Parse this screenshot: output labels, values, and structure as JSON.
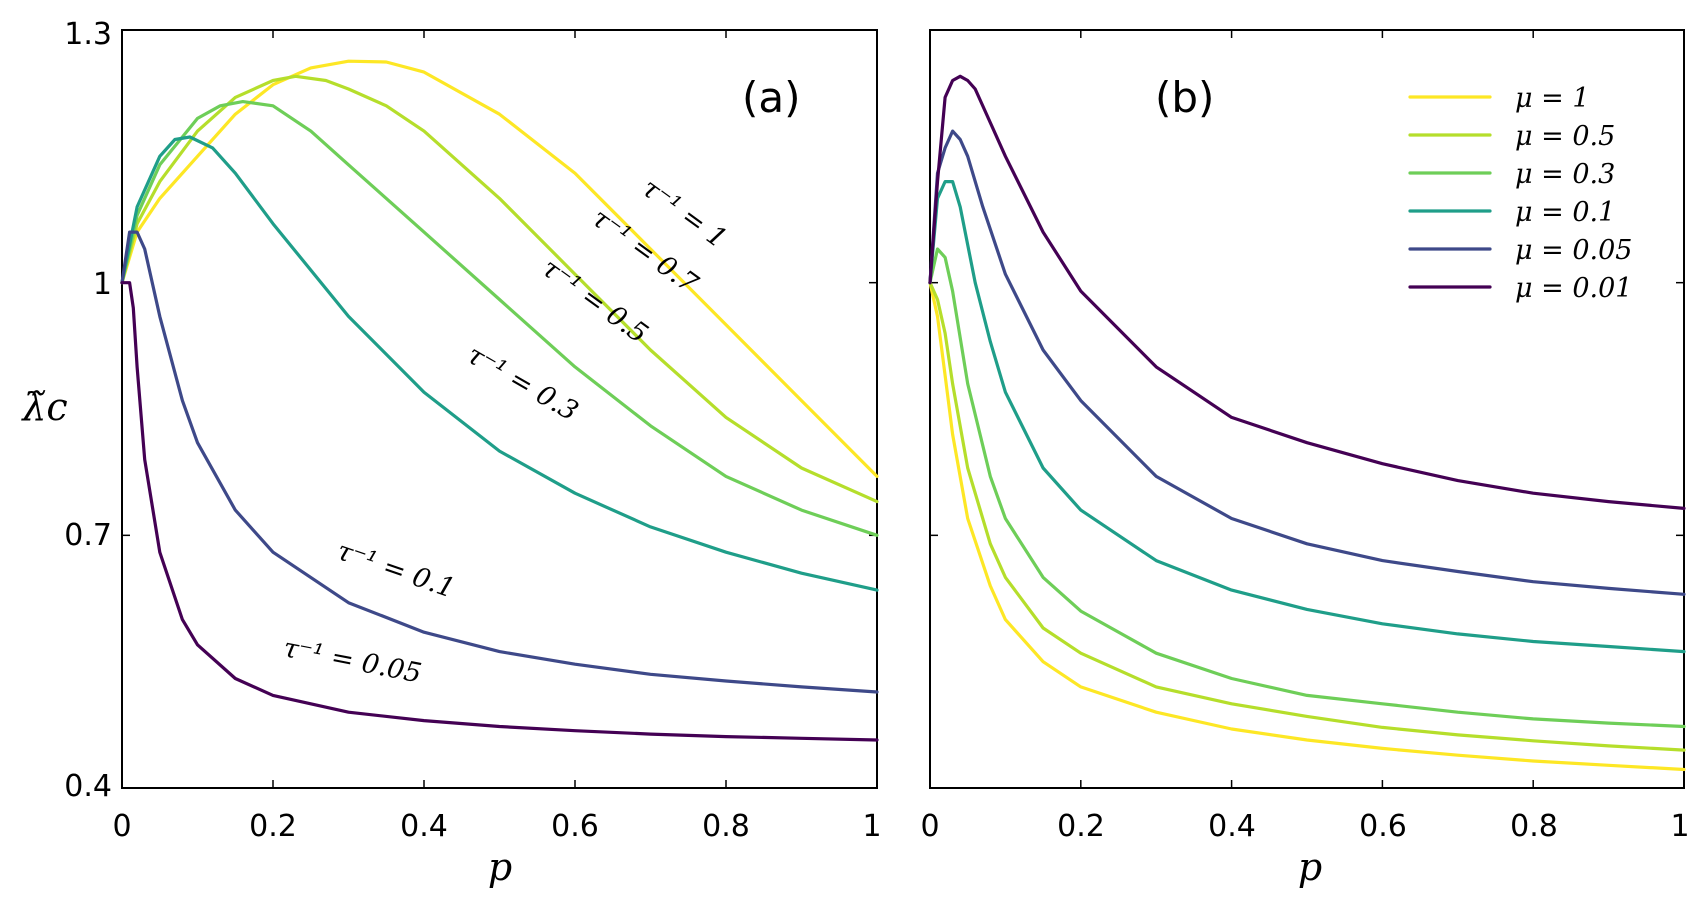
{
  "chart_data": [
    {
      "type": "line",
      "panel_label": "(a)",
      "xlabel": "p",
      "ylabel": "λ̃c",
      "xlim": [
        0,
        1
      ],
      "ylim": [
        0.4,
        1.3
      ],
      "xticks": [
        0,
        0.2,
        0.4,
        0.6,
        0.8,
        1
      ],
      "xtick_labels": [
        "0",
        "0.2",
        "0.4",
        "0.6",
        "0.8",
        "1"
      ],
      "yticks": [
        0.4,
        0.7,
        1,
        1.3
      ],
      "ytick_labels": [
        "0.4",
        "0.7",
        "1",
        "1.3"
      ],
      "series": [
        {
          "name": "τ⁻¹ = 1",
          "label_text": "τ⁻¹ = 1",
          "color": "#fde725",
          "x": [
            0,
            0.02,
            0.05,
            0.1,
            0.15,
            0.2,
            0.25,
            0.3,
            0.35,
            0.4,
            0.5,
            0.6,
            0.7,
            0.8,
            0.9,
            1
          ],
          "y": [
            1.0,
            1.06,
            1.1,
            1.15,
            1.2,
            1.235,
            1.255,
            1.263,
            1.262,
            1.25,
            1.2,
            1.13,
            1.04,
            0.95,
            0.86,
            0.77
          ]
        },
        {
          "name": "τ⁻¹ = 0.7",
          "label_text": "τ⁻¹ = 0.7",
          "color": "#b5de2b",
          "x": [
            0,
            0.02,
            0.05,
            0.1,
            0.15,
            0.2,
            0.23,
            0.27,
            0.3,
            0.35,
            0.4,
            0.5,
            0.6,
            0.7,
            0.8,
            0.9,
            1
          ],
          "y": [
            1.0,
            1.07,
            1.12,
            1.18,
            1.22,
            1.24,
            1.245,
            1.24,
            1.23,
            1.21,
            1.18,
            1.1,
            1.01,
            0.92,
            0.84,
            0.78,
            0.74
          ]
        },
        {
          "name": "τ⁻¹ = 0.5",
          "label_text": "τ⁻¹ = 0.5",
          "color": "#6ece58",
          "x": [
            0,
            0.02,
            0.05,
            0.1,
            0.13,
            0.16,
            0.2,
            0.25,
            0.3,
            0.4,
            0.5,
            0.6,
            0.7,
            0.8,
            0.9,
            1
          ],
          "y": [
            1.0,
            1.08,
            1.14,
            1.195,
            1.21,
            1.215,
            1.21,
            1.18,
            1.14,
            1.06,
            0.98,
            0.9,
            0.83,
            0.77,
            0.73,
            0.7
          ]
        },
        {
          "name": "τ⁻¹ = 0.3",
          "label_text": "τ⁻¹ = 0.3",
          "color": "#1f9e89",
          "x": [
            0,
            0.02,
            0.05,
            0.07,
            0.09,
            0.12,
            0.15,
            0.2,
            0.3,
            0.4,
            0.5,
            0.6,
            0.7,
            0.8,
            0.9,
            1
          ],
          "y": [
            1.0,
            1.09,
            1.15,
            1.17,
            1.173,
            1.16,
            1.13,
            1.07,
            0.96,
            0.87,
            0.8,
            0.75,
            0.71,
            0.68,
            0.655,
            0.635
          ]
        },
        {
          "name": "τ⁻¹ = 0.1",
          "label_text": "τ⁻¹ = 0.1",
          "color": "#3e4989",
          "x": [
            0,
            0.01,
            0.02,
            0.03,
            0.05,
            0.08,
            0.1,
            0.15,
            0.2,
            0.3,
            0.4,
            0.5,
            0.6,
            0.7,
            0.8,
            0.9,
            1
          ],
          "y": [
            1.0,
            1.06,
            1.06,
            1.04,
            0.96,
            0.86,
            0.81,
            0.73,
            0.68,
            0.62,
            0.585,
            0.562,
            0.547,
            0.535,
            0.527,
            0.52,
            0.514
          ]
        },
        {
          "name": "τ⁻¹ = 0.05",
          "label_text": "τ⁻¹ = 0.05",
          "color": "#440154",
          "x": [
            0,
            0.01,
            0.015,
            0.02,
            0.03,
            0.05,
            0.08,
            0.1,
            0.15,
            0.2,
            0.3,
            0.4,
            0.5,
            0.6,
            0.7,
            0.8,
            0.9,
            1
          ],
          "y": [
            1.0,
            1.0,
            0.97,
            0.9,
            0.79,
            0.68,
            0.6,
            0.57,
            0.53,
            0.51,
            0.49,
            0.48,
            0.473,
            0.468,
            0.464,
            0.461,
            0.459,
            0.457
          ]
        }
      ]
    },
    {
      "type": "line",
      "panel_label": "(b)",
      "xlabel": "p",
      "xlim": [
        0,
        1
      ],
      "ylim": [
        0.4,
        1.3
      ],
      "xticks": [
        0,
        0.2,
        0.4,
        0.6,
        0.8,
        1
      ],
      "xtick_labels": [
        "0",
        "0.2",
        "0.4",
        "0.6",
        "0.8",
        "1"
      ],
      "yticks": [
        0.4,
        0.7,
        1,
        1.3
      ],
      "legend_position": "top-right",
      "series": [
        {
          "name": "μ = 1",
          "color": "#fde725",
          "x": [
            0,
            0.01,
            0.02,
            0.03,
            0.05,
            0.08,
            0.1,
            0.15,
            0.2,
            0.3,
            0.4,
            0.5,
            0.6,
            0.7,
            0.8,
            0.9,
            1
          ],
          "y": [
            1.0,
            0.96,
            0.89,
            0.82,
            0.72,
            0.64,
            0.6,
            0.55,
            0.52,
            0.49,
            0.47,
            0.457,
            0.447,
            0.439,
            0.432,
            0.427,
            0.422
          ]
        },
        {
          "name": "μ = 0.5",
          "color": "#b5de2b",
          "x": [
            0,
            0.01,
            0.02,
            0.03,
            0.05,
            0.08,
            0.1,
            0.15,
            0.2,
            0.3,
            0.4,
            0.5,
            0.6,
            0.7,
            0.8,
            0.9,
            1
          ],
          "y": [
            1.0,
            0.98,
            0.94,
            0.88,
            0.78,
            0.69,
            0.65,
            0.59,
            0.56,
            0.52,
            0.5,
            0.485,
            0.472,
            0.463,
            0.456,
            0.45,
            0.445
          ]
        },
        {
          "name": "μ = 0.3",
          "color": "#6ece58",
          "x": [
            0,
            0.01,
            0.02,
            0.03,
            0.05,
            0.08,
            0.1,
            0.15,
            0.2,
            0.3,
            0.4,
            0.5,
            0.6,
            0.7,
            0.8,
            0.9,
            1
          ],
          "y": [
            1.0,
            1.04,
            1.03,
            0.99,
            0.88,
            0.77,
            0.72,
            0.65,
            0.61,
            0.56,
            0.53,
            0.51,
            0.5,
            0.49,
            0.482,
            0.477,
            0.473
          ]
        },
        {
          "name": "μ = 0.1",
          "color": "#1f9e89",
          "x": [
            0,
            0.01,
            0.02,
            0.03,
            0.04,
            0.06,
            0.08,
            0.1,
            0.15,
            0.2,
            0.3,
            0.4,
            0.5,
            0.6,
            0.7,
            0.8,
            0.9,
            1
          ],
          "y": [
            1.0,
            1.1,
            1.12,
            1.12,
            1.09,
            1.0,
            0.93,
            0.87,
            0.78,
            0.73,
            0.67,
            0.635,
            0.612,
            0.595,
            0.583,
            0.574,
            0.568,
            0.562
          ]
        },
        {
          "name": "μ = 0.05",
          "color": "#3e4989",
          "x": [
            0,
            0.01,
            0.02,
            0.03,
            0.04,
            0.05,
            0.07,
            0.1,
            0.15,
            0.2,
            0.3,
            0.4,
            0.5,
            0.6,
            0.7,
            0.8,
            0.9,
            1
          ],
          "y": [
            1.0,
            1.13,
            1.16,
            1.18,
            1.17,
            1.15,
            1.09,
            1.01,
            0.92,
            0.86,
            0.77,
            0.72,
            0.69,
            0.67,
            0.657,
            0.645,
            0.637,
            0.63
          ]
        },
        {
          "name": "μ = 0.01",
          "color": "#440154",
          "x": [
            0,
            0.01,
            0.02,
            0.03,
            0.04,
            0.05,
            0.06,
            0.08,
            0.1,
            0.15,
            0.2,
            0.3,
            0.4,
            0.5,
            0.6,
            0.7,
            0.8,
            0.9,
            1
          ],
          "y": [
            1.0,
            1.12,
            1.22,
            1.24,
            1.245,
            1.24,
            1.23,
            1.19,
            1.15,
            1.06,
            0.99,
            0.9,
            0.84,
            0.81,
            0.785,
            0.765,
            0.75,
            0.74,
            0.732
          ]
        }
      ]
    }
  ]
}
